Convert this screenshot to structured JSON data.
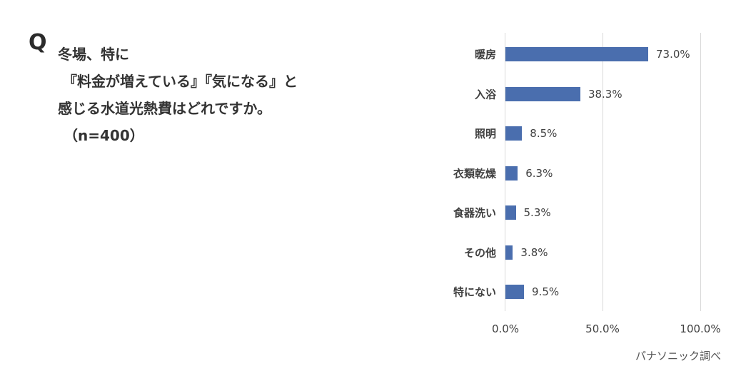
{
  "question": {
    "mark": "Q",
    "lines": [
      "冬場、特に",
      "『料金が増えている』『気になる』と",
      "感じる水道光熱費はどれですか。",
      "（n=400）"
    ]
  },
  "chart_data": {
    "type": "bar",
    "orientation": "horizontal",
    "title": "冬場、特に『料金が増えている』『気になる』と感じる水道光熱費はどれですか。（n=400）",
    "categories": [
      "暖房",
      "入浴",
      "照明",
      "衣類乾燥",
      "食器洗い",
      "その他",
      "特にない"
    ],
    "values": [
      73.0,
      38.3,
      8.5,
      6.3,
      5.3,
      3.8,
      9.5
    ],
    "value_labels": [
      "73.0%",
      "38.3%",
      "8.5%",
      "6.3%",
      "5.3%",
      "3.8%",
      "9.5%"
    ],
    "xlabel": "",
    "ylabel": "",
    "xlim": [
      0,
      100
    ],
    "x_ticks": [
      "0.0%",
      "50.0%",
      "100.0%"
    ],
    "grid": true,
    "bar_color": "#4a6eae",
    "source": "パナソニック調べ"
  }
}
